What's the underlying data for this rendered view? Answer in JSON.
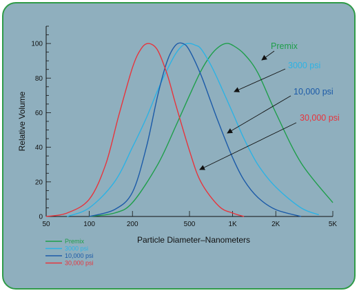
{
  "chart_data": {
    "type": "line",
    "xlabel": "Particle Diameter–Nanometers",
    "ylabel": "Relative Volume",
    "x_scale": "log",
    "xlim": [
      50,
      5000
    ],
    "ylim": [
      0,
      110
    ],
    "x_ticks": [
      {
        "value": 50,
        "label": "50"
      },
      {
        "value": 100,
        "label": "100"
      },
      {
        "value": 200,
        "label": "200"
      },
      {
        "value": 500,
        "label": "500"
      },
      {
        "value": 1000,
        "label": "1K"
      },
      {
        "value": 2000,
        "label": "2K"
      },
      {
        "value": 5000,
        "label": "5K"
      }
    ],
    "y_ticks": [
      0,
      20,
      40,
      60,
      80,
      100
    ],
    "grid": false,
    "legend_position": "bottom-left",
    "series": [
      {
        "name": "Premix",
        "color": "#1e9e4a",
        "x": [
          100,
          150,
          200,
          300,
          400,
          500,
          600,
          700,
          800,
          900,
          1000,
          1200,
          1500,
          2000,
          3000,
          5000
        ],
        "y": [
          0,
          2,
          8,
          30,
          52,
          70,
          84,
          93,
          98,
          100,
          99,
          94,
          83,
          60,
          31,
          8
        ]
      },
      {
        "name": "3000 psi",
        "color": "#2cb2e4",
        "x": [
          70,
          100,
          150,
          200,
          250,
          300,
          350,
          400,
          450,
          500,
          550,
          600,
          700,
          800,
          1000,
          1200,
          1500,
          2000,
          3000,
          4000
        ],
        "y": [
          0,
          5,
          20,
          40,
          57,
          73,
          85,
          94,
          99,
          100,
          99,
          97,
          88,
          78,
          60,
          45,
          30,
          17,
          5,
          1
        ]
      },
      {
        "name": "10,000 psi",
        "color": "#1b5aa8",
        "x": [
          100,
          150,
          200,
          250,
          300,
          350,
          400,
          450,
          500,
          600,
          700,
          800,
          1000,
          1200,
          1500,
          2000,
          3000
        ],
        "y": [
          0,
          4,
          14,
          40,
          70,
          90,
          99,
          100,
          96,
          82,
          67,
          54,
          34,
          21,
          11,
          4,
          0
        ]
      },
      {
        "name": "30,000 psi",
        "color": "#e8333b",
        "x": [
          50,
          70,
          100,
          130,
          160,
          200,
          230,
          260,
          300,
          350,
          400,
          500,
          600,
          800,
          1000,
          1200
        ],
        "y": [
          0,
          2,
          10,
          30,
          58,
          86,
          97,
          100,
          96,
          82,
          65,
          38,
          20,
          6,
          2,
          0
        ]
      }
    ],
    "annotations": [
      {
        "label": "Premix",
        "series": "Premix",
        "color": "#1e9e4a"
      },
      {
        "label": "3000 psi",
        "series": "3000 psi",
        "color": "#2cb2e4"
      },
      {
        "label": "10,000 psi",
        "series": "10,000 psi",
        "color": "#1b5aa8"
      },
      {
        "label": "30,000 psi",
        "series": "30,000 psi",
        "color": "#e8333b"
      }
    ]
  }
}
